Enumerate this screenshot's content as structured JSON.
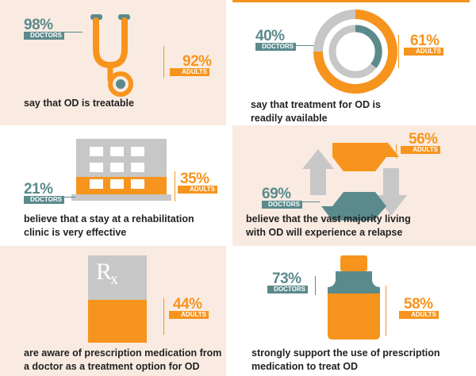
{
  "colors": {
    "teal": "#5b8a8c",
    "orange": "#f7941d",
    "gray": "#c7c7c7",
    "peach": "#f9ebe1"
  },
  "panels": [
    {
      "icon": "stethoscope-icon",
      "doctors": {
        "value": "98%",
        "label": "DOCTORS"
      },
      "adults": {
        "value": "92%",
        "label": "ADULTS"
      },
      "caption": [
        "say that OD is treatable"
      ]
    },
    {
      "icon": "donut-rings-icon",
      "doctors": {
        "value": "40%",
        "label": "DOCTORS"
      },
      "adults": {
        "value": "61%",
        "label": "ADULTS"
      },
      "caption": [
        "say that treatment for OD is",
        "readily available"
      ]
    },
    {
      "icon": "clinic-building-icon",
      "doctors": {
        "value": "21%",
        "label": "DOCTORS"
      },
      "adults": {
        "value": "35%",
        "label": "ADULTS"
      },
      "caption": [
        "believe that a stay at a rehabilitation",
        "clinic is very effective"
      ]
    },
    {
      "icon": "relapse-cycle-icon",
      "doctors": {
        "value": "69%",
        "label": "DOCTORS"
      },
      "adults": {
        "value": "56%",
        "label": "ADULTS"
      },
      "caption": [
        "believe that the vast majority living",
        "with OD will experience a relapse"
      ]
    },
    {
      "icon": "prescription-pad-icon",
      "rx_symbol": "R",
      "rx_sub": "x",
      "adults": {
        "value": "44%",
        "label": "ADULTS"
      },
      "caption": [
        "are aware of prescription medication from",
        "a doctor as a treatment option for OD"
      ]
    },
    {
      "icon": "medicine-bottle-icon",
      "doctors": {
        "value": "73%",
        "label": "DOCTORS"
      },
      "adults": {
        "value": "58%",
        "label": "ADULTS"
      },
      "caption": [
        "strongly support the use of prescription",
        "medication to treat OD"
      ]
    }
  ]
}
